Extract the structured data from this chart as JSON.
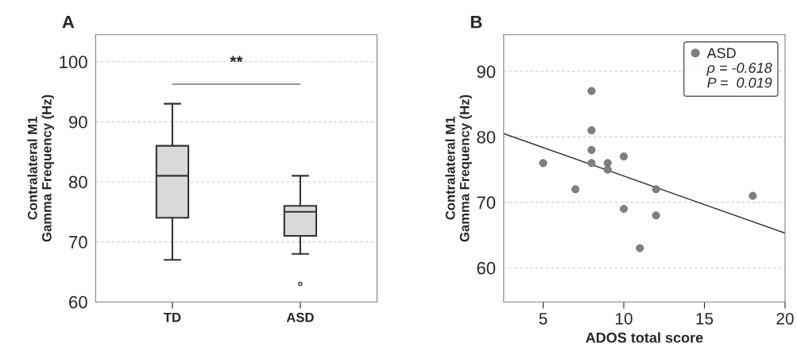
{
  "chart_data": [
    {
      "type": "box",
      "title": "A",
      "categories": [
        "TD",
        "ASD"
      ],
      "ylabel": "Contralateral M1\nGamma Frequency (Hz)",
      "ylim": [
        60,
        104.5
      ],
      "yticks": [
        60,
        70,
        80,
        90,
        100
      ],
      "grid": "y",
      "color": "#d9d9d9",
      "boxes": [
        {
          "low": 67,
          "q1": 74,
          "median": 81,
          "q3": 86,
          "high": 93
        },
        {
          "low": 68,
          "q1": 71,
          "median": 75,
          "q3": 76,
          "high": 81,
          "outliers": [
            63
          ]
        }
      ],
      "annotations": [
        "**"
      ]
    },
    {
      "type": "scatter",
      "title": "B",
      "xlabel": "ADOS total score",
      "ylabel": "Contralateral M1\nGamma Frequency (Hz)",
      "xlim": [
        2.55,
        20
      ],
      "xticks": [
        5,
        10,
        15,
        20
      ],
      "ylim": [
        54.8,
        95.6
      ],
      "yticks": [
        60,
        70,
        80,
        90
      ],
      "grid": "y",
      "legend": "top right",
      "series": [
        {
          "name": "ASD",
          "type": "scatter",
          "marker": "circle",
          "color": "#808080",
          "x": [
            5,
            7,
            8,
            8,
            8,
            8,
            9,
            9,
            10,
            10,
            11,
            12,
            12,
            18
          ],
          "values": [
            76,
            72,
            87,
            81,
            78,
            76,
            76,
            75,
            77,
            69,
            63,
            72,
            68,
            71
          ]
        },
        {
          "type": "line",
          "color": "#333333",
          "x": [
            2.55,
            20
          ],
          "values": [
            80.5,
            65.3
          ]
        }
      ],
      "annotations": [
        "ρ = -0.618",
        "P =  0.019"
      ]
    }
  ]
}
